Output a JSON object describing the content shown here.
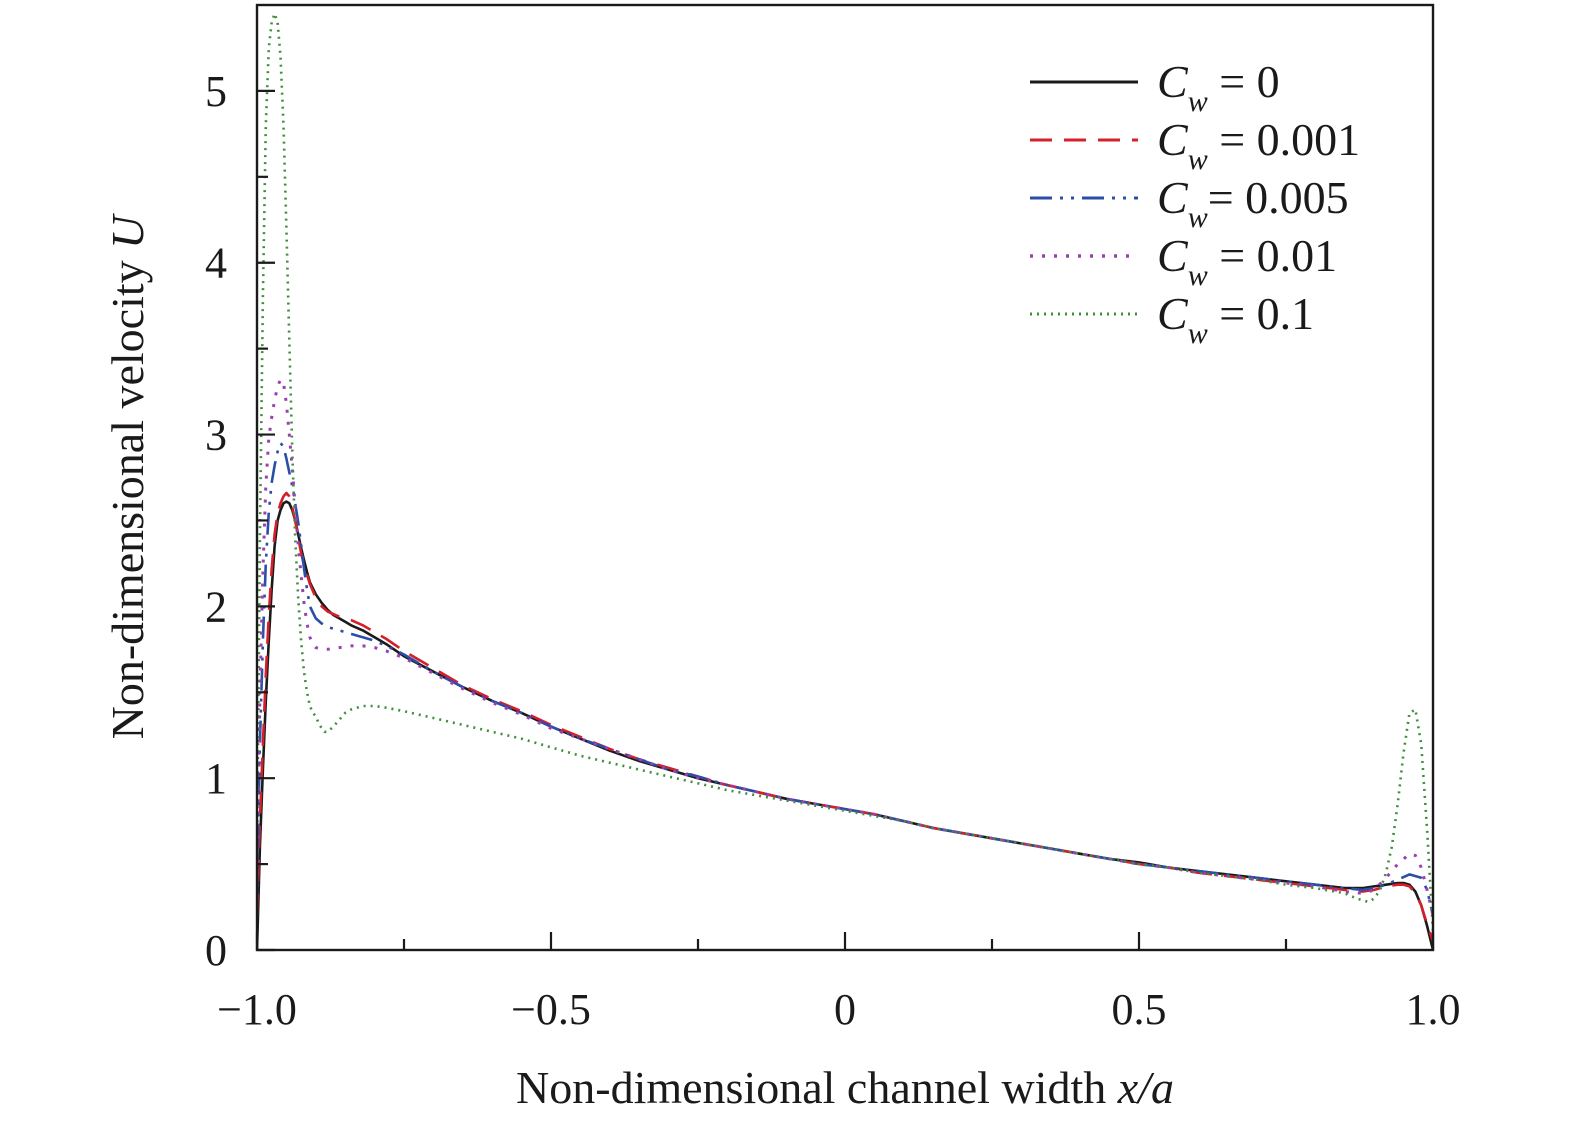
{
  "chart_data": {
    "type": "line",
    "title": "",
    "xlabel": "Non-dimensional channel width ",
    "xlabel_var": "x/a",
    "ylabel": "Non-dimensional velocity ",
    "ylabel_var": "U",
    "xlim": [
      -1.0,
      1.0
    ],
    "ylim": [
      0,
      5.5
    ],
    "x_ticks": [
      -1.0,
      -0.75,
      -0.5,
      -0.25,
      0,
      0.25,
      0.5,
      0.75,
      1.0
    ],
    "x_tick_labels": [
      "−1.0",
      "",
      "−0.5",
      "",
      "0",
      "",
      "0.5",
      "",
      "1.0"
    ],
    "y_ticks": [
      0,
      0.5,
      1,
      1.5,
      2,
      2.5,
      3,
      3.5,
      4,
      4.5,
      5
    ],
    "y_tick_labels": [
      "0",
      "",
      "1",
      "",
      "2",
      "",
      "3",
      "",
      "4",
      "",
      "5"
    ],
    "grid": false,
    "legend_position": "top-right",
    "series": [
      {
        "name": "0",
        "legend_symbol": "C",
        "legend_sub": "w",
        "legend_eq": " = ",
        "color": "#1a1a1a",
        "dash": "",
        "width": 2.6,
        "x": [
          -1.0,
          -0.995,
          -0.99,
          -0.985,
          -0.98,
          -0.975,
          -0.97,
          -0.965,
          -0.96,
          -0.955,
          -0.95,
          -0.945,
          -0.94,
          -0.935,
          -0.93,
          -0.925,
          -0.92,
          -0.915,
          -0.91,
          -0.9,
          -0.89,
          -0.88,
          -0.87,
          -0.86,
          -0.85,
          -0.84,
          -0.82,
          -0.8,
          -0.78,
          -0.75,
          -0.7,
          -0.65,
          -0.6,
          -0.55,
          -0.5,
          -0.45,
          -0.4,
          -0.35,
          -0.3,
          -0.25,
          -0.2,
          -0.15,
          -0.1,
          -0.05,
          0,
          0.05,
          0.1,
          0.15,
          0.2,
          0.25,
          0.3,
          0.35,
          0.4,
          0.45,
          0.5,
          0.55,
          0.6,
          0.65,
          0.7,
          0.75,
          0.8,
          0.85,
          0.88,
          0.9,
          0.92,
          0.94,
          0.95,
          0.96,
          0.97,
          0.98,
          0.99,
          1.0
        ],
        "y": [
          0,
          0.6,
          1.05,
          1.45,
          1.8,
          2.1,
          2.35,
          2.5,
          2.56,
          2.6,
          2.61,
          2.6,
          2.56,
          2.5,
          2.42,
          2.34,
          2.27,
          2.2,
          2.14,
          2.07,
          2.02,
          1.98,
          1.95,
          1.93,
          1.91,
          1.89,
          1.86,
          1.82,
          1.78,
          1.71,
          1.62,
          1.53,
          1.45,
          1.38,
          1.3,
          1.23,
          1.16,
          1.1,
          1.05,
          1.0,
          0.96,
          0.92,
          0.88,
          0.85,
          0.82,
          0.79,
          0.75,
          0.71,
          0.68,
          0.65,
          0.62,
          0.59,
          0.56,
          0.53,
          0.51,
          0.48,
          0.46,
          0.44,
          0.42,
          0.4,
          0.38,
          0.36,
          0.36,
          0.37,
          0.38,
          0.39,
          0.39,
          0.38,
          0.34,
          0.26,
          0.14,
          0.0
        ]
      },
      {
        "name": "0.001",
        "legend_symbol": "C",
        "legend_sub": "w",
        "legend_eq": " = ",
        "color": "#d4202a",
        "dash": "22,12",
        "width": 2.6,
        "x": [
          -1.0,
          -0.995,
          -0.99,
          -0.985,
          -0.98,
          -0.975,
          -0.97,
          -0.965,
          -0.96,
          -0.955,
          -0.95,
          -0.945,
          -0.94,
          -0.935,
          -0.93,
          -0.925,
          -0.92,
          -0.91,
          -0.9,
          -0.89,
          -0.88,
          -0.86,
          -0.84,
          -0.82,
          -0.8,
          -0.78,
          -0.75,
          -0.7,
          -0.65,
          -0.6,
          -0.55,
          -0.5,
          -0.45,
          -0.4,
          -0.35,
          -0.3,
          -0.25,
          -0.2,
          -0.15,
          -0.1,
          -0.05,
          0,
          0.05,
          0.1,
          0.15,
          0.2,
          0.25,
          0.3,
          0.35,
          0.4,
          0.45,
          0.5,
          0.55,
          0.6,
          0.65,
          0.7,
          0.75,
          0.8,
          0.85,
          0.88,
          0.9,
          0.92,
          0.94,
          0.95,
          0.96,
          0.97,
          0.98,
          0.99,
          1.0
        ],
        "y": [
          0.2,
          0.75,
          1.2,
          1.6,
          1.95,
          2.22,
          2.42,
          2.54,
          2.6,
          2.64,
          2.66,
          2.64,
          2.58,
          2.5,
          2.4,
          2.31,
          2.24,
          2.13,
          2.05,
          2.0,
          1.97,
          1.94,
          1.92,
          1.89,
          1.85,
          1.81,
          1.74,
          1.64,
          1.54,
          1.46,
          1.39,
          1.31,
          1.24,
          1.17,
          1.11,
          1.06,
          1.01,
          0.96,
          0.92,
          0.88,
          0.85,
          0.82,
          0.79,
          0.75,
          0.71,
          0.68,
          0.65,
          0.62,
          0.59,
          0.56,
          0.53,
          0.5,
          0.48,
          0.45,
          0.43,
          0.41,
          0.39,
          0.37,
          0.35,
          0.34,
          0.35,
          0.37,
          0.38,
          0.38,
          0.37,
          0.33,
          0.26,
          0.15,
          0.05
        ]
      },
      {
        "name": "0.005",
        "legend_symbol": "C",
        "legend_sub": "w",
        "legend_eq": "= ",
        "color": "#2b4fa8",
        "dash": "22,8,3,8,3,8",
        "width": 2.6,
        "x": [
          -1.0,
          -0.995,
          -0.99,
          -0.985,
          -0.98,
          -0.975,
          -0.97,
          -0.965,
          -0.96,
          -0.955,
          -0.95,
          -0.945,
          -0.94,
          -0.935,
          -0.93,
          -0.925,
          -0.92,
          -0.915,
          -0.91,
          -0.9,
          -0.89,
          -0.88,
          -0.86,
          -0.84,
          -0.82,
          -0.8,
          -0.78,
          -0.75,
          -0.7,
          -0.65,
          -0.6,
          -0.55,
          -0.5,
          -0.45,
          -0.4,
          -0.35,
          -0.3,
          -0.25,
          -0.2,
          -0.15,
          -0.1,
          -0.05,
          0,
          0.05,
          0.1,
          0.15,
          0.2,
          0.25,
          0.3,
          0.35,
          0.4,
          0.45,
          0.5,
          0.55,
          0.6,
          0.65,
          0.7,
          0.75,
          0.8,
          0.85,
          0.88,
          0.9,
          0.92,
          0.94,
          0.96,
          0.98,
          0.99,
          1.0
        ],
        "y": [
          0.3,
          1.2,
          1.8,
          2.25,
          2.55,
          2.72,
          2.82,
          2.9,
          2.95,
          2.93,
          2.86,
          2.78,
          2.7,
          2.6,
          2.49,
          2.36,
          2.22,
          2.1,
          2.0,
          1.93,
          1.9,
          1.88,
          1.86,
          1.84,
          1.82,
          1.8,
          1.77,
          1.72,
          1.62,
          1.53,
          1.45,
          1.38,
          1.3,
          1.23,
          1.17,
          1.11,
          1.05,
          1.01,
          0.96,
          0.92,
          0.88,
          0.85,
          0.82,
          0.79,
          0.75,
          0.71,
          0.68,
          0.65,
          0.62,
          0.59,
          0.56,
          0.53,
          0.5,
          0.48,
          0.46,
          0.44,
          0.42,
          0.4,
          0.38,
          0.36,
          0.35,
          0.36,
          0.38,
          0.41,
          0.44,
          0.42,
          0.35,
          0.2
        ]
      },
      {
        "name": "0.01",
        "legend_symbol": "C",
        "legend_sub": "w",
        "legend_eq": " = ",
        "color": "#9b3fb3",
        "dash": "3,9",
        "width": 3.0,
        "x": [
          -1.0,
          -0.995,
          -0.99,
          -0.985,
          -0.98,
          -0.975,
          -0.97,
          -0.965,
          -0.96,
          -0.955,
          -0.95,
          -0.945,
          -0.94,
          -0.935,
          -0.93,
          -0.925,
          -0.92,
          -0.915,
          -0.91,
          -0.905,
          -0.9,
          -0.89,
          -0.88,
          -0.86,
          -0.84,
          -0.82,
          -0.8,
          -0.78,
          -0.75,
          -0.7,
          -0.65,
          -0.6,
          -0.55,
          -0.5,
          -0.45,
          -0.4,
          -0.35,
          -0.3,
          -0.25,
          -0.2,
          -0.15,
          -0.1,
          -0.05,
          0,
          0.05,
          0.1,
          0.15,
          0.2,
          0.25,
          0.3,
          0.35,
          0.4,
          0.45,
          0.5,
          0.55,
          0.6,
          0.65,
          0.7,
          0.75,
          0.8,
          0.85,
          0.88,
          0.9,
          0.92,
          0.94,
          0.96,
          0.97,
          0.98,
          0.99,
          1.0
        ],
        "y": [
          0.3,
          1.5,
          2.2,
          2.7,
          2.98,
          3.1,
          3.2,
          3.28,
          3.32,
          3.3,
          3.18,
          3.0,
          2.8,
          2.58,
          2.36,
          2.18,
          2.02,
          1.9,
          1.82,
          1.78,
          1.76,
          1.75,
          1.75,
          1.76,
          1.77,
          1.77,
          1.76,
          1.74,
          1.7,
          1.61,
          1.52,
          1.44,
          1.37,
          1.29,
          1.23,
          1.17,
          1.11,
          1.05,
          1.0,
          0.96,
          0.92,
          0.88,
          0.85,
          0.82,
          0.79,
          0.75,
          0.71,
          0.68,
          0.65,
          0.62,
          0.59,
          0.56,
          0.53,
          0.5,
          0.48,
          0.45,
          0.43,
          0.41,
          0.39,
          0.37,
          0.34,
          0.33,
          0.35,
          0.42,
          0.5,
          0.56,
          0.55,
          0.48,
          0.35,
          0.2
        ]
      },
      {
        "name": "0.1",
        "legend_symbol": "C",
        "legend_sub": "w",
        "legend_eq": " = ",
        "color": "#3f8f3a",
        "dash": "2,5",
        "width": 2.6,
        "x": [
          -1.0,
          -0.995,
          -0.99,
          -0.985,
          -0.98,
          -0.975,
          -0.97,
          -0.965,
          -0.96,
          -0.955,
          -0.95,
          -0.945,
          -0.94,
          -0.935,
          -0.93,
          -0.925,
          -0.92,
          -0.915,
          -0.91,
          -0.905,
          -0.9,
          -0.895,
          -0.89,
          -0.885,
          -0.88,
          -0.87,
          -0.86,
          -0.85,
          -0.84,
          -0.82,
          -0.8,
          -0.78,
          -0.75,
          -0.7,
          -0.65,
          -0.6,
          -0.55,
          -0.5,
          -0.45,
          -0.4,
          -0.35,
          -0.3,
          -0.25,
          -0.2,
          -0.15,
          -0.1,
          -0.05,
          0,
          0.05,
          0.1,
          0.15,
          0.2,
          0.25,
          0.3,
          0.35,
          0.4,
          0.45,
          0.5,
          0.55,
          0.6,
          0.65,
          0.7,
          0.75,
          0.8,
          0.85,
          0.87,
          0.88,
          0.89,
          0.9,
          0.91,
          0.92,
          0.93,
          0.94,
          0.95,
          0.96,
          0.97,
          0.98,
          0.99,
          1.0
        ],
        "y": [
          0.5,
          2.4,
          3.8,
          4.8,
          5.25,
          5.4,
          5.45,
          5.4,
          5.2,
          4.8,
          4.2,
          3.55,
          2.9,
          2.4,
          2.05,
          1.8,
          1.62,
          1.5,
          1.42,
          1.38,
          1.36,
          1.32,
          1.29,
          1.27,
          1.27,
          1.3,
          1.34,
          1.38,
          1.4,
          1.42,
          1.42,
          1.41,
          1.39,
          1.35,
          1.31,
          1.27,
          1.23,
          1.18,
          1.13,
          1.09,
          1.05,
          1.01,
          0.97,
          0.93,
          0.9,
          0.87,
          0.84,
          0.81,
          0.78,
          0.75,
          0.71,
          0.68,
          0.65,
          0.62,
          0.59,
          0.56,
          0.53,
          0.5,
          0.48,
          0.45,
          0.43,
          0.41,
          0.38,
          0.36,
          0.33,
          0.3,
          0.29,
          0.28,
          0.3,
          0.35,
          0.45,
          0.6,
          0.85,
          1.15,
          1.38,
          1.4,
          1.2,
          0.7,
          0.1
        ]
      }
    ]
  }
}
